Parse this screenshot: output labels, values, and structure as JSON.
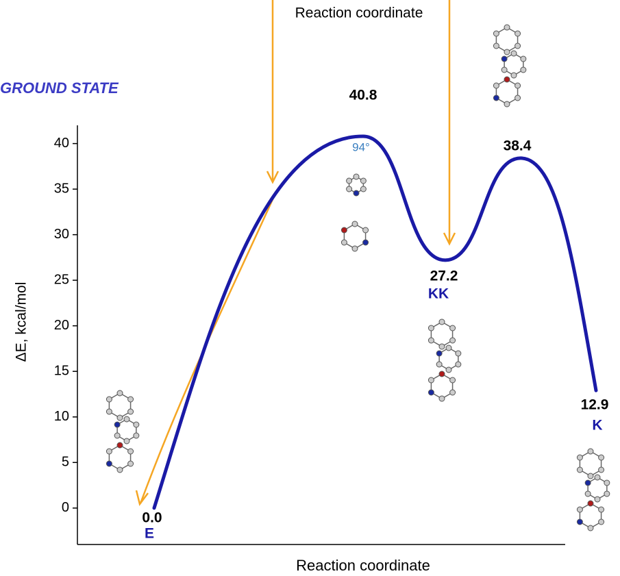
{
  "chart_data": {
    "type": "line",
    "title": "GROUND STATE",
    "top_annotation": "Reaction coordinate",
    "angle_annotation": "94°",
    "xlabel": "Reaction coordinate",
    "ylabel": "ΔE, kcal/mol",
    "categories": [
      "E",
      null,
      "KK",
      null,
      "K"
    ],
    "series": [
      {
        "name": null,
        "color": "#1a1aa6",
        "values": [
          0.0,
          40.8,
          27.2,
          38.4,
          12.9
        ],
        "value_labels": [
          "0.0",
          "40.8",
          "27.2",
          "38.4",
          "12.9"
        ]
      }
    ],
    "ylim": [
      -4,
      42
    ],
    "yticks": [
      0,
      5,
      10,
      15,
      20,
      25,
      30,
      35,
      40
    ]
  }
}
